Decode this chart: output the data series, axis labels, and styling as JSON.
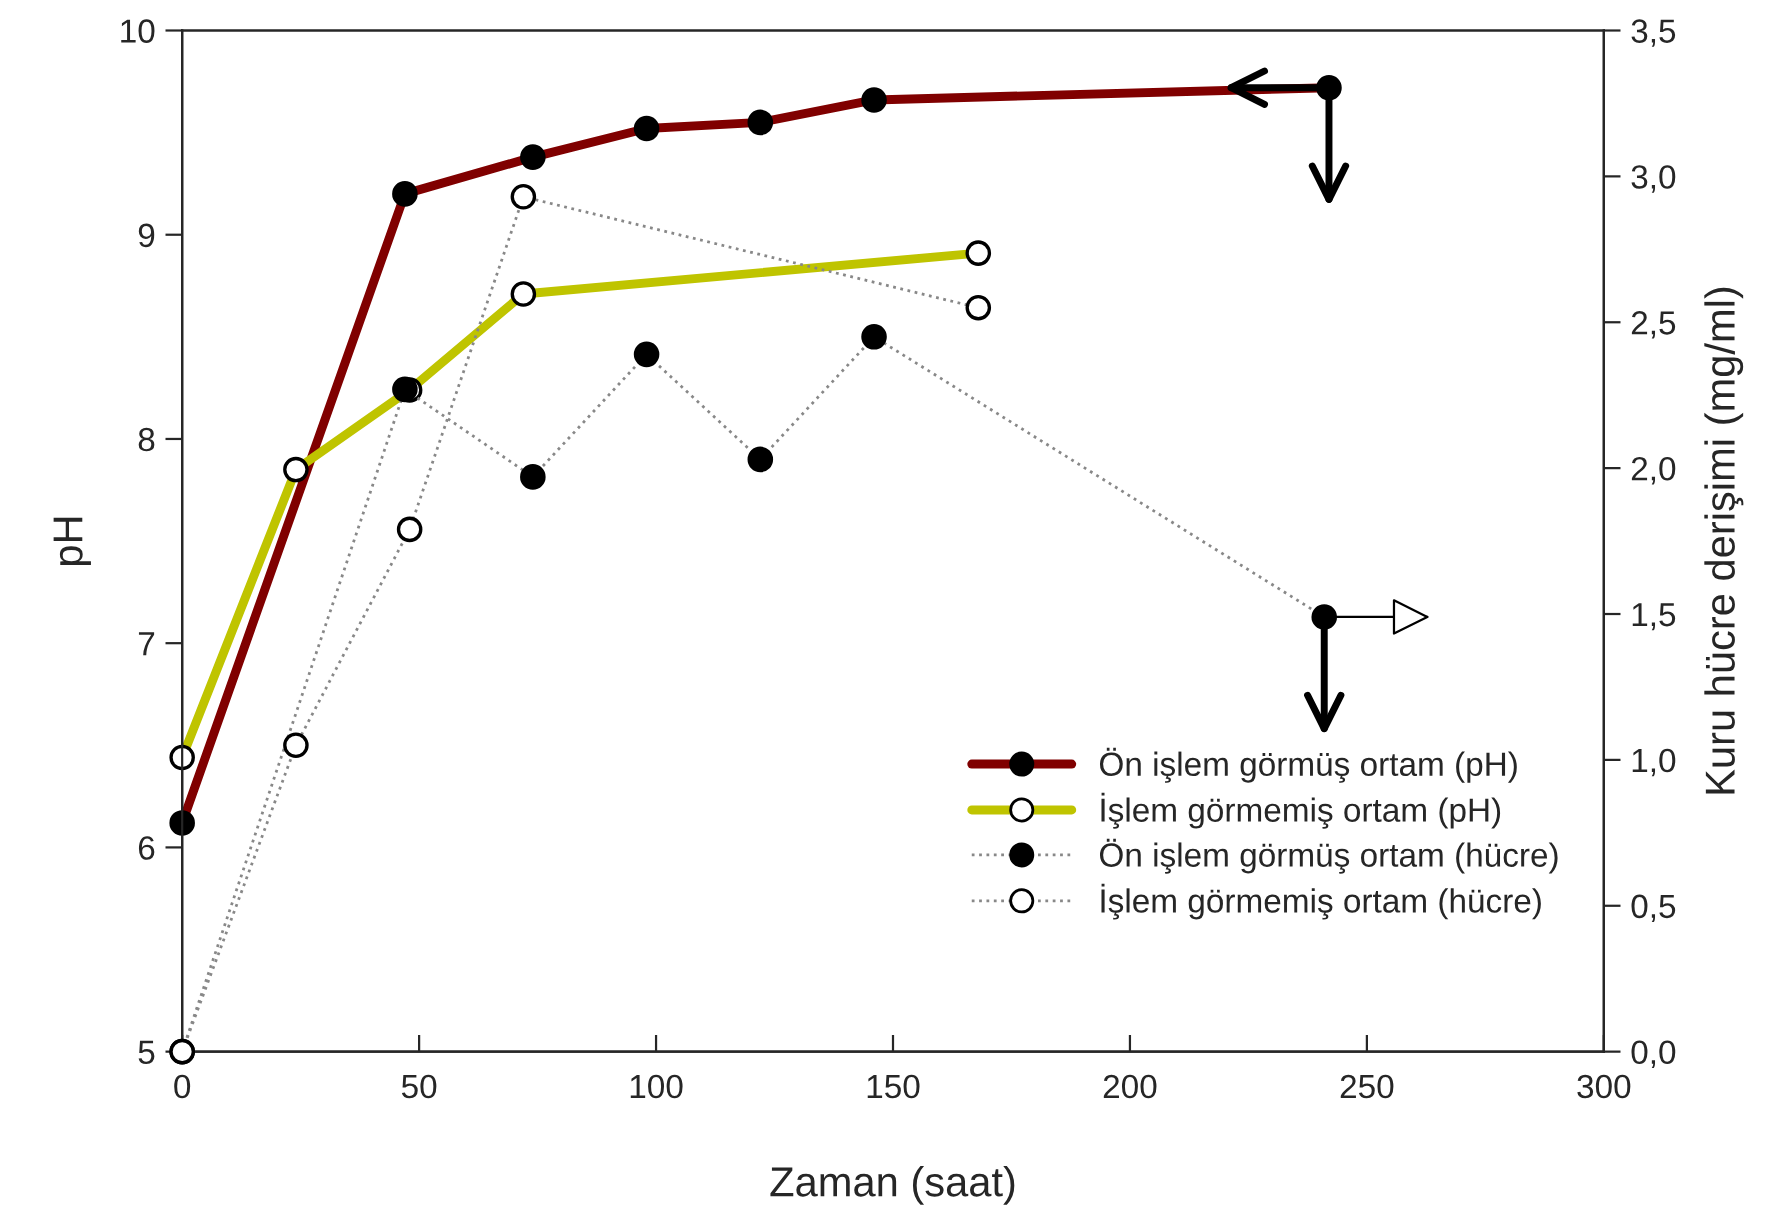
{
  "chart_data": {
    "type": "line",
    "xlabel": "Zaman (saat)",
    "ylabel": "pH",
    "y2label": "Kuru hücre derişimi (mg/ml)",
    "xlim": [
      0,
      300
    ],
    "xticks": [
      0,
      50,
      100,
      150,
      200,
      250,
      300
    ],
    "ylim": [
      5,
      10
    ],
    "yticks": [
      5,
      6,
      7,
      8,
      9,
      10
    ],
    "y2lim": [
      0,
      3.5
    ],
    "y2ticks": [
      {
        "value": 0,
        "label": "0,0"
      },
      {
        "value": 0.5,
        "label": "0,5"
      },
      {
        "value": 1,
        "label": "1,0"
      },
      {
        "value": 1.5,
        "label": "1,5"
      },
      {
        "value": 2,
        "label": "2,0"
      },
      {
        "value": 2.5,
        "label": "2,5"
      },
      {
        "value": 3,
        "label": "3,0"
      },
      {
        "value": 3.5,
        "label": "3,5"
      }
    ],
    "grid": false,
    "legend": "bottom right",
    "marker": "circle",
    "series": [
      {
        "name": "Ön işlem görmüş ortam (pH)",
        "color": "#800000",
        "colors": [
          "#000000",
          "#000000",
          "#000000",
          "#000000",
          "#000000",
          "#000000",
          "#000000"
        ],
        "line_style": "solid",
        "x": [
          0,
          47,
          74,
          98,
          122,
          146,
          242
        ],
        "values": [
          6.12,
          9.2,
          9.38,
          9.52,
          9.55,
          9.66,
          9.72
        ]
      },
      {
        "name": "İşlem görmemiş ortam (pH)",
        "color": "#bfc400",
        "colors": [
          "#ffffff",
          "#ffffff",
          "#ffffff",
          "#ffffff",
          "#ffffff"
        ],
        "line_style": "solid",
        "x": [
          0,
          24,
          48,
          72,
          168
        ],
        "values": [
          6.44,
          7.85,
          8.24,
          8.71,
          8.91
        ]
      },
      {
        "name": "Ön işlem görmüş ortam (hücre)",
        "color": "#888888",
        "colors": [
          "#000000",
          "#000000",
          "#000000",
          "#000000",
          "#000000",
          "#000000",
          "#000000"
        ],
        "line_style": "dotted",
        "axis": "y2",
        "x": [
          0,
          47,
          74,
          98,
          122,
          146,
          241
        ],
        "values": [
          0,
          2.27,
          1.97,
          2.39,
          2.03,
          2.45,
          1.49
        ]
      },
      {
        "name": "İşlem görmemiş ortam (hücre)",
        "color": "#888888",
        "colors": [
          "#ffffff",
          "#ffffff",
          "#ffffff",
          "#ffffff",
          "#ffffff"
        ],
        "line_style": "dotted",
        "axis": "y2",
        "x": [
          0,
          24,
          48,
          72,
          168
        ],
        "values": [
          0,
          1.05,
          1.79,
          2.93,
          2.55
        ]
      }
    ]
  }
}
